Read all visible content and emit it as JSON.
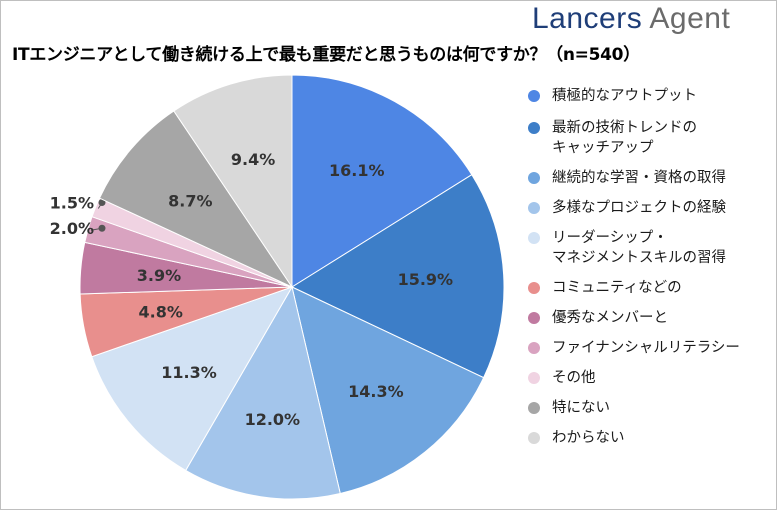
{
  "logo": {
    "word1": "Lancers",
    "word2": "Agent"
  },
  "chart_data": {
    "type": "pie",
    "title": "ITエンジニアとして働き続ける上で最も重要だと思うものは何ですか？（n=540）",
    "unit": "%",
    "slices": [
      {
        "label": "積極的なアウトプット",
        "lines": [
          "積極的なアウトプット"
        ],
        "value": 16.1,
        "color": "#4e86e4"
      },
      {
        "label": "最新の技術トレンドのキャッチアップ",
        "lines": [
          "最新の技術トレンドの",
          "キャッチアップ"
        ],
        "value": 15.9,
        "color": "#3d7ec8"
      },
      {
        "label": "継続的な学習・資格の取得",
        "lines": [
          "継続的な学習・資格の取得"
        ],
        "value": 14.3,
        "color": "#6fa5df"
      },
      {
        "label": "多様なプロジェクトの経験",
        "lines": [
          "多様なプロジェクトの経験"
        ],
        "value": 12.0,
        "color": "#a3c5eb"
      },
      {
        "label": "リーダーシップ・マネジメントスキルの習得",
        "lines": [
          "リーダーシップ・",
          "マネジメントスキルの習得"
        ],
        "value": 11.3,
        "color": "#d2e2f4"
      },
      {
        "label": "コミュニティなどの",
        "lines": [
          "コミュニティなどの"
        ],
        "value": 4.8,
        "color": "#e88f8d"
      },
      {
        "label": "優秀なメンバーと",
        "lines": [
          "優秀なメンバーと"
        ],
        "value": 3.9,
        "color": "#c07aa0"
      },
      {
        "label": "ファイナンシャルリテラシー",
        "lines": [
          "ファイナンシャルリテラシー"
        ],
        "value": 2.0,
        "color": "#d9a3c0"
      },
      {
        "label": "その他",
        "lines": [
          "その他"
        ],
        "value": 1.5,
        "color": "#f0d3e2"
      },
      {
        "label": "特にない",
        "lines": [
          "特にない"
        ],
        "value": 8.7,
        "color": "#a6a6a6"
      },
      {
        "label": "わからない",
        "lines": [
          "わからない"
        ],
        "value": 9.4,
        "color": "#d9d9d9"
      }
    ]
  }
}
